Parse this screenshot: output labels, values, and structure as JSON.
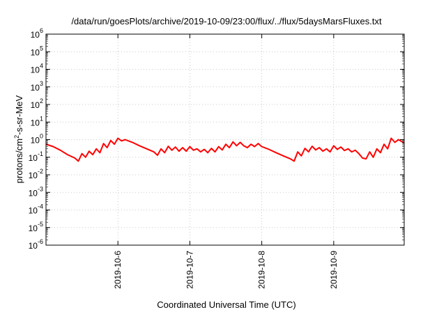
{
  "chart_data": {
    "type": "line",
    "title": "/data/run/goesPlots/archive/2019-10-09/23:00/flux/../flux/5daysMarsFluxes.txt",
    "xlabel": "Coordinated Universal Time (UTC)",
    "ylabel": {
      "prefix": "protons/cm",
      "sup": "2",
      "suffix": "-s-sr-MeV"
    },
    "y_scale": "log",
    "ylim_exp": [
      -6,
      6
    ],
    "y_tick_exponents": [
      -6,
      -5,
      -4,
      -3,
      -2,
      -1,
      0,
      1,
      2,
      3,
      4,
      5,
      6
    ],
    "xlim_day": [
      5.0,
      9.98
    ],
    "x_ticks": [
      {
        "day": 6,
        "label": "2019-10-6"
      },
      {
        "day": 7,
        "label": "2019-10-7"
      },
      {
        "day": 8,
        "label": "2019-10-8"
      },
      {
        "day": 9,
        "label": "2019-10-9"
      }
    ],
    "grid": true,
    "series": [
      {
        "color": "#ff0000",
        "x": [
          5.0,
          5.1,
          5.2,
          5.3,
          5.4,
          5.45,
          5.5,
          5.55,
          5.6,
          5.65,
          5.7,
          5.75,
          5.8,
          5.85,
          5.9,
          5.95,
          6.0,
          6.05,
          6.1,
          6.2,
          6.3,
          6.4,
          6.5,
          6.55,
          6.6,
          6.65,
          6.7,
          6.75,
          6.8,
          6.85,
          6.9,
          6.95,
          7.0,
          7.05,
          7.1,
          7.15,
          7.2,
          7.25,
          7.3,
          7.35,
          7.4,
          7.45,
          7.5,
          7.55,
          7.6,
          7.65,
          7.7,
          7.75,
          7.8,
          7.85,
          7.9,
          7.95,
          8.0,
          8.1,
          8.2,
          8.3,
          8.4,
          8.45,
          8.5,
          8.55,
          8.6,
          8.65,
          8.7,
          8.75,
          8.8,
          8.85,
          8.9,
          8.95,
          9.0,
          9.05,
          9.1,
          9.15,
          9.2,
          9.25,
          9.3,
          9.35,
          9.4,
          9.45,
          9.5,
          9.55,
          9.6,
          9.65,
          9.7,
          9.75,
          9.8,
          9.85,
          9.9,
          9.98
        ],
        "y": [
          0.55,
          0.4,
          0.25,
          0.14,
          0.09,
          0.06,
          0.16,
          0.1,
          0.22,
          0.14,
          0.3,
          0.18,
          0.6,
          0.35,
          0.9,
          0.55,
          1.2,
          0.85,
          1.0,
          0.7,
          0.45,
          0.3,
          0.2,
          0.13,
          0.3,
          0.18,
          0.42,
          0.25,
          0.38,
          0.22,
          0.35,
          0.22,
          0.4,
          0.25,
          0.3,
          0.2,
          0.28,
          0.18,
          0.32,
          0.2,
          0.4,
          0.26,
          0.55,
          0.35,
          0.75,
          0.45,
          0.7,
          0.45,
          0.35,
          0.55,
          0.4,
          0.6,
          0.4,
          0.28,
          0.18,
          0.12,
          0.08,
          0.06,
          0.2,
          0.12,
          0.32,
          0.2,
          0.42,
          0.26,
          0.35,
          0.22,
          0.3,
          0.2,
          0.45,
          0.28,
          0.38,
          0.24,
          0.3,
          0.2,
          0.25,
          0.16,
          0.09,
          0.08,
          0.2,
          0.1,
          0.3,
          0.18,
          0.55,
          0.3,
          1.2,
          0.7,
          1.0,
          0.65
        ]
      }
    ]
  }
}
